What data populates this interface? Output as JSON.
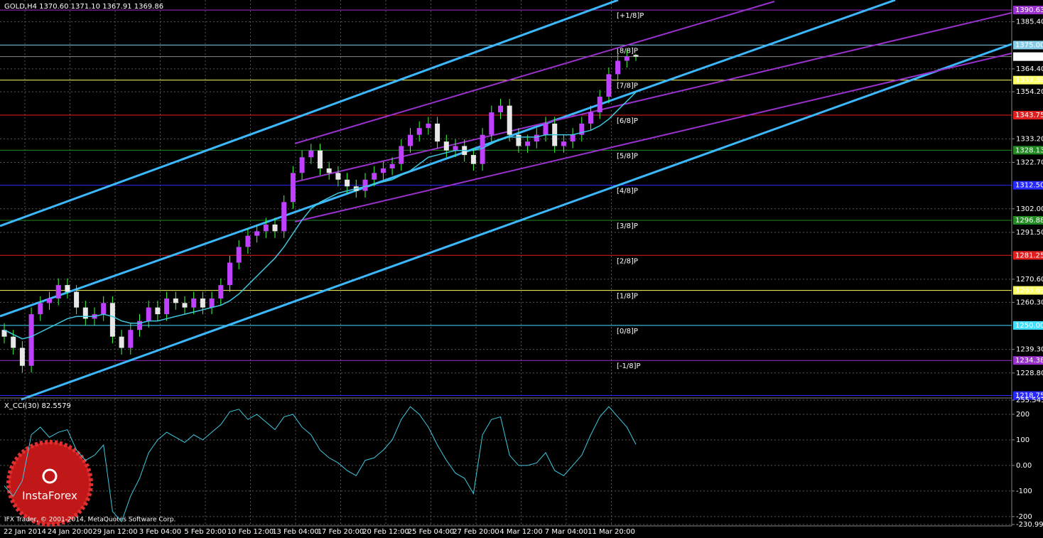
{
  "chart_data": {
    "type": "candlestick",
    "header": "GOLD,H4  1370.60 1371.10 1367.91 1369.86",
    "ylim": [
      1218.6,
      1395.1
    ],
    "yticks": [
      {
        "value": 1385.4,
        "label": "1385.40"
      },
      {
        "value": 1364.4,
        "label": "1364.40"
      },
      {
        "value": 1354.2,
        "label": "1354.20"
      },
      {
        "value": 1333.2,
        "label": "1333.20"
      },
      {
        "value": 1322.7,
        "label": "1322.70"
      },
      {
        "value": 1302.0,
        "label": "1302.00"
      },
      {
        "value": 1291.5,
        "label": "1291.50"
      },
      {
        "value": 1270.6,
        "label": "1270.60"
      },
      {
        "value": 1260.3,
        "label": "1260.30"
      },
      {
        "value": 1239.3,
        "label": "1239.30"
      },
      {
        "value": 1228.8,
        "label": "1228.80"
      }
    ],
    "grid": true,
    "x_labels": [
      "22 Jan 2014",
      "24 Jan 20:00",
      "29 Jan 12:00",
      "3 Feb 04:00",
      "5 Feb 20:00",
      "10 Feb 12:00",
      "13 Feb 04:00",
      "17 Feb 20:00",
      "20 Feb 12:00",
      "25 Feb 04:00",
      "27 Feb 20:00",
      "4 Mar 12:00",
      "7 Mar 04:00",
      "11 Mar 20:00"
    ],
    "bull_color": "#c040ff",
    "bear_color": "#e8e8e8",
    "wick_color": "#40ff40",
    "ma_color": "#40c8e0",
    "levels": [
      {
        "name": "[+1/8]P",
        "value": 1390.63,
        "label": "1390.63",
        "color": "#9932cc"
      },
      {
        "name": "[8/8]P",
        "value": 1375,
        "label": "1375.00",
        "color": "#87ceeb"
      },
      {
        "name": "[7/8]P",
        "value": 1359.38,
        "label": "1359.38",
        "color": "#ffff66"
      },
      {
        "name": "[6/8]P",
        "value": 1343.75,
        "label": "1343.75",
        "color": "#e02020"
      },
      {
        "name": "[5/8]P",
        "value": 1328.13,
        "label": "1328.13",
        "color": "#228b22"
      },
      {
        "name": "[4/8]P",
        "value": 1312.5,
        "label": "1312.50",
        "color": "#2828ff"
      },
      {
        "name": "[3/8]P",
        "value": 1296.88,
        "label": "1296.88",
        "color": "#228b22"
      },
      {
        "name": "[2/8]P",
        "value": 1281.25,
        "label": "1281.25",
        "color": "#e02020"
      },
      {
        "name": "[1/8]P",
        "value": 1265.63,
        "label": "1265.63",
        "color": "#ffff66"
      },
      {
        "name": "[0/8]P",
        "value": 1250,
        "label": "1250.00",
        "color": "#40e0ff"
      },
      {
        "name": "[-1/8]P",
        "value": 1234.38,
        "label": "1234.38",
        "color": "#9932cc"
      },
      {
        "value": 1218.75,
        "label": "1218.75",
        "color": "#2828ff"
      }
    ],
    "last_price": 1369.86,
    "opens": [
      1248,
      1245,
      1240,
      1232,
      1255,
      1260,
      1262,
      1268,
      1265,
      1258,
      1253,
      1255,
      1260,
      1245,
      1240,
      1248,
      1252,
      1258,
      1255,
      1262,
      1260,
      1258,
      1262,
      1258,
      1262,
      1268,
      1278,
      1285,
      1290,
      1292,
      1295,
      1292,
      1305,
      1318,
      1325,
      1328,
      1320,
      1318,
      1315,
      1312,
      1310,
      1315,
      1318,
      1320,
      1322,
      1330,
      1335,
      1338,
      1340,
      1332,
      1328,
      1330,
      1326,
      1322,
      1335,
      1345,
      1348,
      1335,
      1330,
      1332,
      1335,
      1340,
      1330,
      1332,
      1335,
      1340,
      1345,
      1352,
      1362,
      1368,
      1370.6
    ],
    "highs": [
      1251,
      1248,
      1243,
      1258,
      1263,
      1265,
      1271,
      1271,
      1268,
      1261,
      1258,
      1263,
      1263,
      1248,
      1251,
      1255,
      1261,
      1261,
      1265,
      1265,
      1263,
      1265,
      1265,
      1265,
      1271,
      1281,
      1288,
      1293,
      1295,
      1298,
      1298,
      1308,
      1321,
      1328,
      1331,
      1331,
      1323,
      1321,
      1318,
      1315,
      1318,
      1321,
      1323,
      1325,
      1333,
      1338,
      1341,
      1343,
      1343,
      1335,
      1333,
      1333,
      1329,
      1338,
      1348,
      1351,
      1351,
      1338,
      1335,
      1338,
      1343,
      1343,
      1335,
      1338,
      1343,
      1348,
      1355,
      1365,
      1371,
      1373,
      1371.1
    ],
    "lows": [
      1242,
      1237,
      1229,
      1229,
      1252,
      1257,
      1259,
      1262,
      1255,
      1250,
      1250,
      1252,
      1242,
      1237,
      1237,
      1245,
      1249,
      1252,
      1252,
      1257,
      1255,
      1255,
      1255,
      1255,
      1259,
      1265,
      1275,
      1282,
      1287,
      1289,
      1289,
      1289,
      1302,
      1315,
      1322,
      1317,
      1315,
      1312,
      1309,
      1307,
      1307,
      1312,
      1315,
      1317,
      1319,
      1327,
      1332,
      1335,
      1329,
      1325,
      1325,
      1323,
      1319,
      1319,
      1332,
      1342,
      1332,
      1327,
      1327,
      1329,
      1332,
      1327,
      1327,
      1329,
      1332,
      1337,
      1342,
      1349,
      1359,
      1365,
      1367.91
    ],
    "closes": [
      1245,
      1240,
      1232,
      1255,
      1260,
      1262,
      1268,
      1265,
      1258,
      1253,
      1255,
      1260,
      1245,
      1240,
      1248,
      1252,
      1258,
      1255,
      1262,
      1260,
      1258,
      1262,
      1258,
      1262,
      1268,
      1278,
      1285,
      1290,
      1292,
      1295,
      1292,
      1305,
      1318,
      1325,
      1328,
      1320,
      1318,
      1315,
      1312,
      1310,
      1315,
      1318,
      1320,
      1322,
      1330,
      1335,
      1338,
      1340,
      1332,
      1328,
      1330,
      1326,
      1322,
      1335,
      1345,
      1348,
      1335,
      1330,
      1332,
      1335,
      1340,
      1330,
      1332,
      1335,
      1340,
      1345,
      1352,
      1362,
      1368,
      1370,
      1369.86
    ],
    "ma": [
      1248,
      1246,
      1244,
      1245,
      1247,
      1249,
      1251,
      1253,
      1254,
      1254,
      1254,
      1255,
      1254,
      1252,
      1251,
      1251,
      1252,
      1252,
      1253,
      1254,
      1255,
      1256,
      1257,
      1258,
      1259,
      1261,
      1264,
      1268,
      1272,
      1276,
      1280,
      1285,
      1291,
      1297,
      1302,
      1305,
      1307,
      1309,
      1310,
      1311,
      1312,
      1313,
      1314,
      1315,
      1317,
      1319,
      1322,
      1325,
      1326,
      1327,
      1328,
      1328,
      1328,
      1329,
      1331,
      1333,
      1334,
      1334,
      1334,
      1334,
      1335,
      1335,
      1335,
      1335,
      1336,
      1337,
      1339,
      1342,
      1346,
      1350,
      1354
    ],
    "cci": {
      "label": "X_CCI(30) 82.5579",
      "color": "#40c8e0",
      "ylim": [
        -230.9914,
        255.5434
      ],
      "yticks": [
        {
          "value": 255.5434,
          "label": "255.5434"
        },
        200,
        100,
        {
          "value": 0,
          "label": "0.00"
        },
        -100,
        -200,
        {
          "value": -230.9914,
          "label": "-230.9914"
        }
      ],
      "values": [
        -80,
        -120,
        -60,
        120,
        150,
        110,
        130,
        140,
        60,
        20,
        40,
        80,
        -180,
        -220,
        -120,
        -50,
        50,
        100,
        130,
        110,
        90,
        120,
        100,
        130,
        160,
        210,
        220,
        180,
        200,
        170,
        140,
        190,
        200,
        150,
        120,
        60,
        30,
        10,
        -20,
        -40,
        20,
        30,
        60,
        100,
        180,
        230,
        200,
        150,
        80,
        20,
        -30,
        -50,
        -110,
        120,
        180,
        190,
        40,
        0,
        0,
        10,
        50,
        -20,
        -40,
        0,
        40,
        120,
        190,
        230,
        190,
        150,
        82.5579
      ]
    },
    "watermark": "InstaForex",
    "copyright": "IFX Trader, © 2001-2014, MetaQuotes Software Corp."
  }
}
